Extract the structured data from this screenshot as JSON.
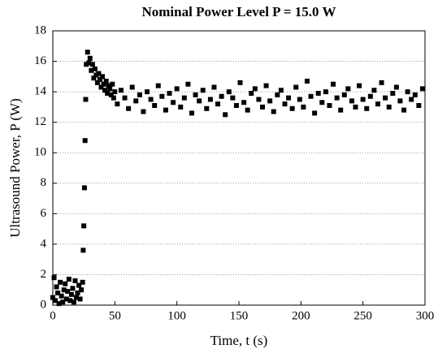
{
  "chart_data": {
    "type": "scatter",
    "title": "Nominal Power Level P = 15.0 W",
    "xlabel": "Time, t (s)",
    "ylabel": "Ultrasound Power, P  (W)",
    "xlim": [
      0,
      300
    ],
    "xticks": [
      0,
      50,
      100,
      150,
      200,
      250,
      300
    ],
    "ylim": [
      0,
      18
    ],
    "yticks": [
      0,
      2,
      4,
      6,
      8,
      10,
      12,
      14,
      16,
      18
    ],
    "grid": true,
    "color": "#000000",
    "x": [
      0,
      1,
      2,
      3,
      4,
      5,
      6,
      7,
      8,
      9,
      10,
      11,
      12,
      13,
      14,
      15,
      16,
      17,
      18,
      19,
      20,
      21,
      22,
      23,
      24,
      24.5,
      25,
      25.5,
      26,
      26.5,
      27,
      28,
      29,
      30,
      31,
      32,
      33,
      34,
      35,
      36,
      37,
      38,
      39,
      40,
      41,
      42,
      43,
      44,
      45,
      46,
      47,
      48,
      49,
      50,
      52,
      55,
      58,
      61,
      64,
      67,
      70,
      73,
      76,
      79,
      82,
      85,
      88,
      91,
      94,
      97,
      100,
      103,
      106,
      109,
      112,
      115,
      118,
      121,
      124,
      127,
      130,
      133,
      136,
      139,
      142,
      145,
      148,
      151,
      154,
      157,
      160,
      163,
      166,
      169,
      172,
      175,
      178,
      181,
      184,
      187,
      190,
      193,
      196,
      199,
      202,
      205,
      208,
      211,
      214,
      217,
      220,
      223,
      226,
      229,
      232,
      235,
      238,
      241,
      244,
      247,
      250,
      253,
      256,
      259,
      262,
      265,
      268,
      271,
      274,
      277,
      280,
      283,
      286,
      289,
      292,
      295,
      298
    ],
    "values": [
      0.5,
      1.8,
      0.3,
      1.2,
      0.8,
      0.1,
      1.5,
      0.6,
      0.2,
      1.0,
      1.4,
      0.4,
      0.9,
      1.7,
      0.3,
      0.7,
      1.1,
      0.2,
      1.6,
      0.5,
      0.8,
      1.3,
      0.4,
      1.0,
      1.5,
      3.6,
      5.2,
      7.7,
      10.8,
      13.5,
      15.8,
      16.6,
      15.9,
      16.2,
      15.4,
      15.8,
      14.9,
      15.5,
      15.1,
      14.6,
      15.2,
      14.8,
      14.3,
      15.0,
      14.5,
      14.1,
      14.7,
      13.9,
      14.4,
      14.2,
      13.8,
      14.5,
      13.6,
      14.0,
      13.2,
      14.1,
      13.6,
      12.9,
      14.3,
      13.4,
      13.8,
      12.7,
      14.0,
      13.5,
      13.1,
      14.4,
      13.7,
      12.8,
      13.9,
      13.3,
      14.2,
      13.0,
      13.6,
      14.5,
      12.6,
      13.8,
      13.4,
      14.1,
      12.9,
      13.5,
      14.3,
      13.2,
      13.7,
      12.5,
      14.0,
      13.6,
      13.1,
      14.6,
      13.3,
      12.8,
      13.9,
      14.2,
      13.5,
      13.0,
      14.4,
      13.4,
      12.7,
      13.8,
      14.1,
      13.2,
      13.6,
      12.9,
      14.3,
      13.5,
      13.0,
      14.7,
      13.7,
      12.6,
      13.9,
      13.3,
      14.0,
      13.1,
      14.5,
      13.6,
      12.8,
      13.8,
      14.2,
      13.4,
      13.0,
      14.4,
      13.5,
      12.9,
      13.7,
      14.1,
      13.2,
      14.6,
      13.6,
      13.0,
      13.9,
      14.3,
      13.4,
      12.8,
      14.0,
      13.5,
      13.8,
      13.1,
      14.2
    ]
  }
}
